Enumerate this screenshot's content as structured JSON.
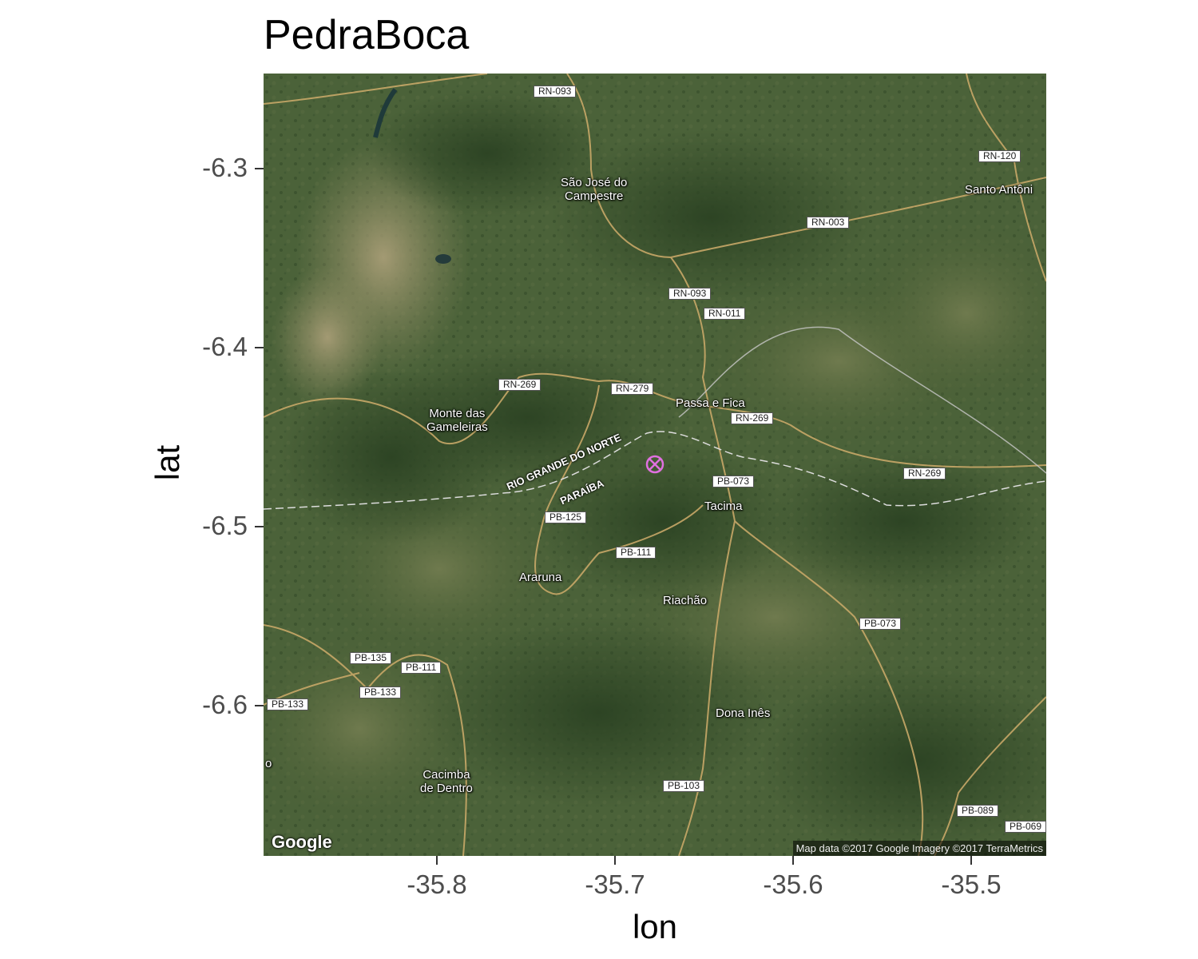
{
  "title": "PedraBoca",
  "axes": {
    "xlabel": "lon",
    "ylabel": "lat",
    "xticks": [
      "-35.8",
      "-35.7",
      "-35.6",
      "-35.5"
    ],
    "yticks": [
      "-6.3",
      "-6.4",
      "-6.5",
      "-6.6"
    ]
  },
  "map": {
    "type": "satellite",
    "google_logo": "Google",
    "attribution": "Map data ©2017 Google  Imagery ©2017 TerraMetrics",
    "road_labels": [
      "RN-093",
      "RN-120",
      "RN-003",
      "RN-093",
      "RN-011",
      "RN-269",
      "RN-279",
      "RN-269",
      "RN-269",
      "PB-073",
      "PB-125",
      "PB-111",
      "PB-073",
      "PB-135",
      "PB-111",
      "PB-133",
      "PB-133",
      "PB-103",
      "PB-089",
      "PB-069"
    ],
    "place_labels": [
      "São José do\nCampestre",
      "Santo Antôni",
      "Passa e Fica",
      "Monte das\nGameleiras",
      "Tacima",
      "Araruna",
      "Riachão",
      "Dona Inês",
      "Cacimba\nde Dentro",
      "o"
    ],
    "state_labels": [
      "RIO GRANDE DO NORTE",
      "PARAÍBA"
    ],
    "marker": {
      "lon": -35.68,
      "lat": -6.465,
      "symbol": "circle-x",
      "color": "#e070e0"
    }
  }
}
